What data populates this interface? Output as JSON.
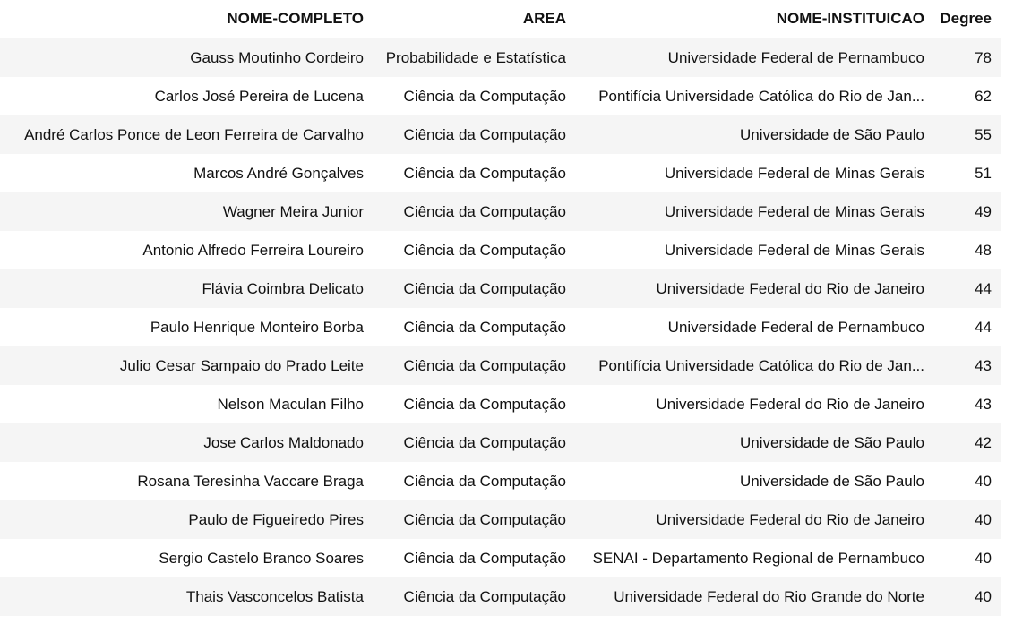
{
  "table": {
    "headers": [
      "NOME-COMPLETO",
      "AREA",
      "NOME-INSTITUICAO",
      "Degree"
    ],
    "rows": [
      [
        "Gauss Moutinho Cordeiro",
        "Probabilidade e Estatística",
        "Universidade Federal de Pernambuco",
        "78"
      ],
      [
        "Carlos José Pereira de Lucena",
        "Ciência da Computação",
        "Pontifícia Universidade Católica do Rio de Jan...",
        "62"
      ],
      [
        "André Carlos Ponce de Leon Ferreira de Carvalho",
        "Ciência da Computação",
        "Universidade de São Paulo",
        "55"
      ],
      [
        "Marcos André Gonçalves",
        "Ciência da Computação",
        "Universidade Federal de Minas Gerais",
        "51"
      ],
      [
        "Wagner Meira Junior",
        "Ciência da Computação",
        "Universidade Federal de Minas Gerais",
        "49"
      ],
      [
        "Antonio Alfredo Ferreira Loureiro",
        "Ciência da Computação",
        "Universidade Federal de Minas Gerais",
        "48"
      ],
      [
        "Flávia Coimbra Delicato",
        "Ciência da Computação",
        "Universidade Federal do Rio de Janeiro",
        "44"
      ],
      [
        "Paulo Henrique Monteiro Borba",
        "Ciência da Computação",
        "Universidade Federal de Pernambuco",
        "44"
      ],
      [
        "Julio Cesar Sampaio do Prado Leite",
        "Ciência da Computação",
        "Pontifícia Universidade Católica do Rio de Jan...",
        "43"
      ],
      [
        "Nelson Maculan Filho",
        "Ciência da Computação",
        "Universidade Federal do Rio de Janeiro",
        "43"
      ],
      [
        "Jose Carlos Maldonado",
        "Ciência da Computação",
        "Universidade de São Paulo",
        "42"
      ],
      [
        "Rosana Teresinha Vaccare Braga",
        "Ciência da Computação",
        "Universidade de São Paulo",
        "40"
      ],
      [
        "Paulo de Figueiredo Pires",
        "Ciência da Computação",
        "Universidade Federal do Rio de Janeiro",
        "40"
      ],
      [
        "Sergio Castelo Branco Soares",
        "Ciência da Computação",
        "SENAI - Departamento Regional de Pernambuco",
        "40"
      ],
      [
        "Thais Vasconcelos Batista",
        "Ciência da Computação",
        "Universidade Federal do Rio Grande do Norte",
        "40"
      ]
    ]
  }
}
